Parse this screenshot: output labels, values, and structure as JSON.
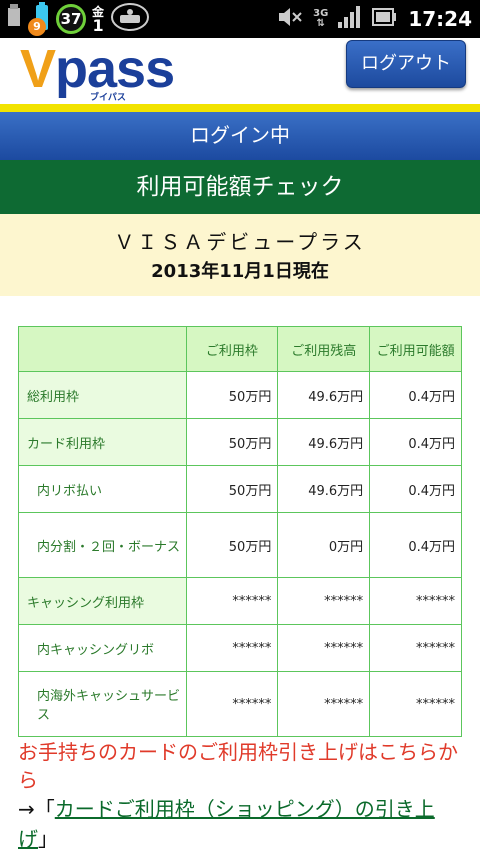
{
  "status_bar": {
    "notification_count": "9",
    "circle_value": "37",
    "calendar_day_label": "金",
    "calendar_date": "1",
    "network": "3G",
    "time": "17:24",
    "icons": [
      "usb-icon",
      "battery-small-icon",
      "voicemail-icon",
      "mute-icon",
      "signal-icon",
      "battery-icon"
    ]
  },
  "header": {
    "logo_main": "V",
    "logo_rest": "pass",
    "logo_sub": "ブイパス",
    "logout_label": "ログアウト"
  },
  "login_status": "ログイン中",
  "page_title": "利用可能額チェック",
  "card": {
    "name": "ＶＩＳＡデビュープラス",
    "as_of": "2013年11月1日現在"
  },
  "table": {
    "headers": [
      "",
      "ご利用枠",
      "ご利用残高",
      "ご利用可能額"
    ],
    "rows": [
      {
        "label": "総利用枠",
        "limit": "50万円",
        "balance": "49.6万円",
        "available": "0.4万円"
      },
      {
        "label": "カード利用枠",
        "limit": "50万円",
        "balance": "49.6万円",
        "available": "0.4万円"
      },
      {
        "label": "内リボ払い",
        "limit": "50万円",
        "balance": "49.6万円",
        "available": "0.4万円"
      },
      {
        "label": "内分割・２回・ボーナス",
        "limit": "50万円",
        "balance": "0万円",
        "available": "0.4万円"
      },
      {
        "label": "キャッシング利用枠",
        "limit": "******",
        "balance": "******",
        "available": "******"
      },
      {
        "label": "内キャッシングリボ",
        "limit": "******",
        "balance": "******",
        "available": "******"
      },
      {
        "label": "内海外キャッシュサービス",
        "limit": "******",
        "balance": "******",
        "available": "******"
      }
    ]
  },
  "footer": {
    "raise_text": "お手持ちのカードのご利用枠引き上げはこちらから",
    "arrow_prefix": "→「",
    "raise_link": "カードご利用枠（ショッピング）の引き上げ",
    "suffix": "」"
  },
  "colors": {
    "status_bar": "#000000",
    "logout_button": "#2558b0",
    "yellow_stripe": "#f2e300",
    "blue_bar": "#2a5cb3",
    "green_bar": "#0e6a33",
    "card_panel": "#fdf6cf",
    "table_header": "#d6f7c2",
    "table_border": "#5cc65c",
    "label_text": "#2b7a2b",
    "raise_text": "#e03a2a",
    "link": "#0b6a2b"
  }
}
